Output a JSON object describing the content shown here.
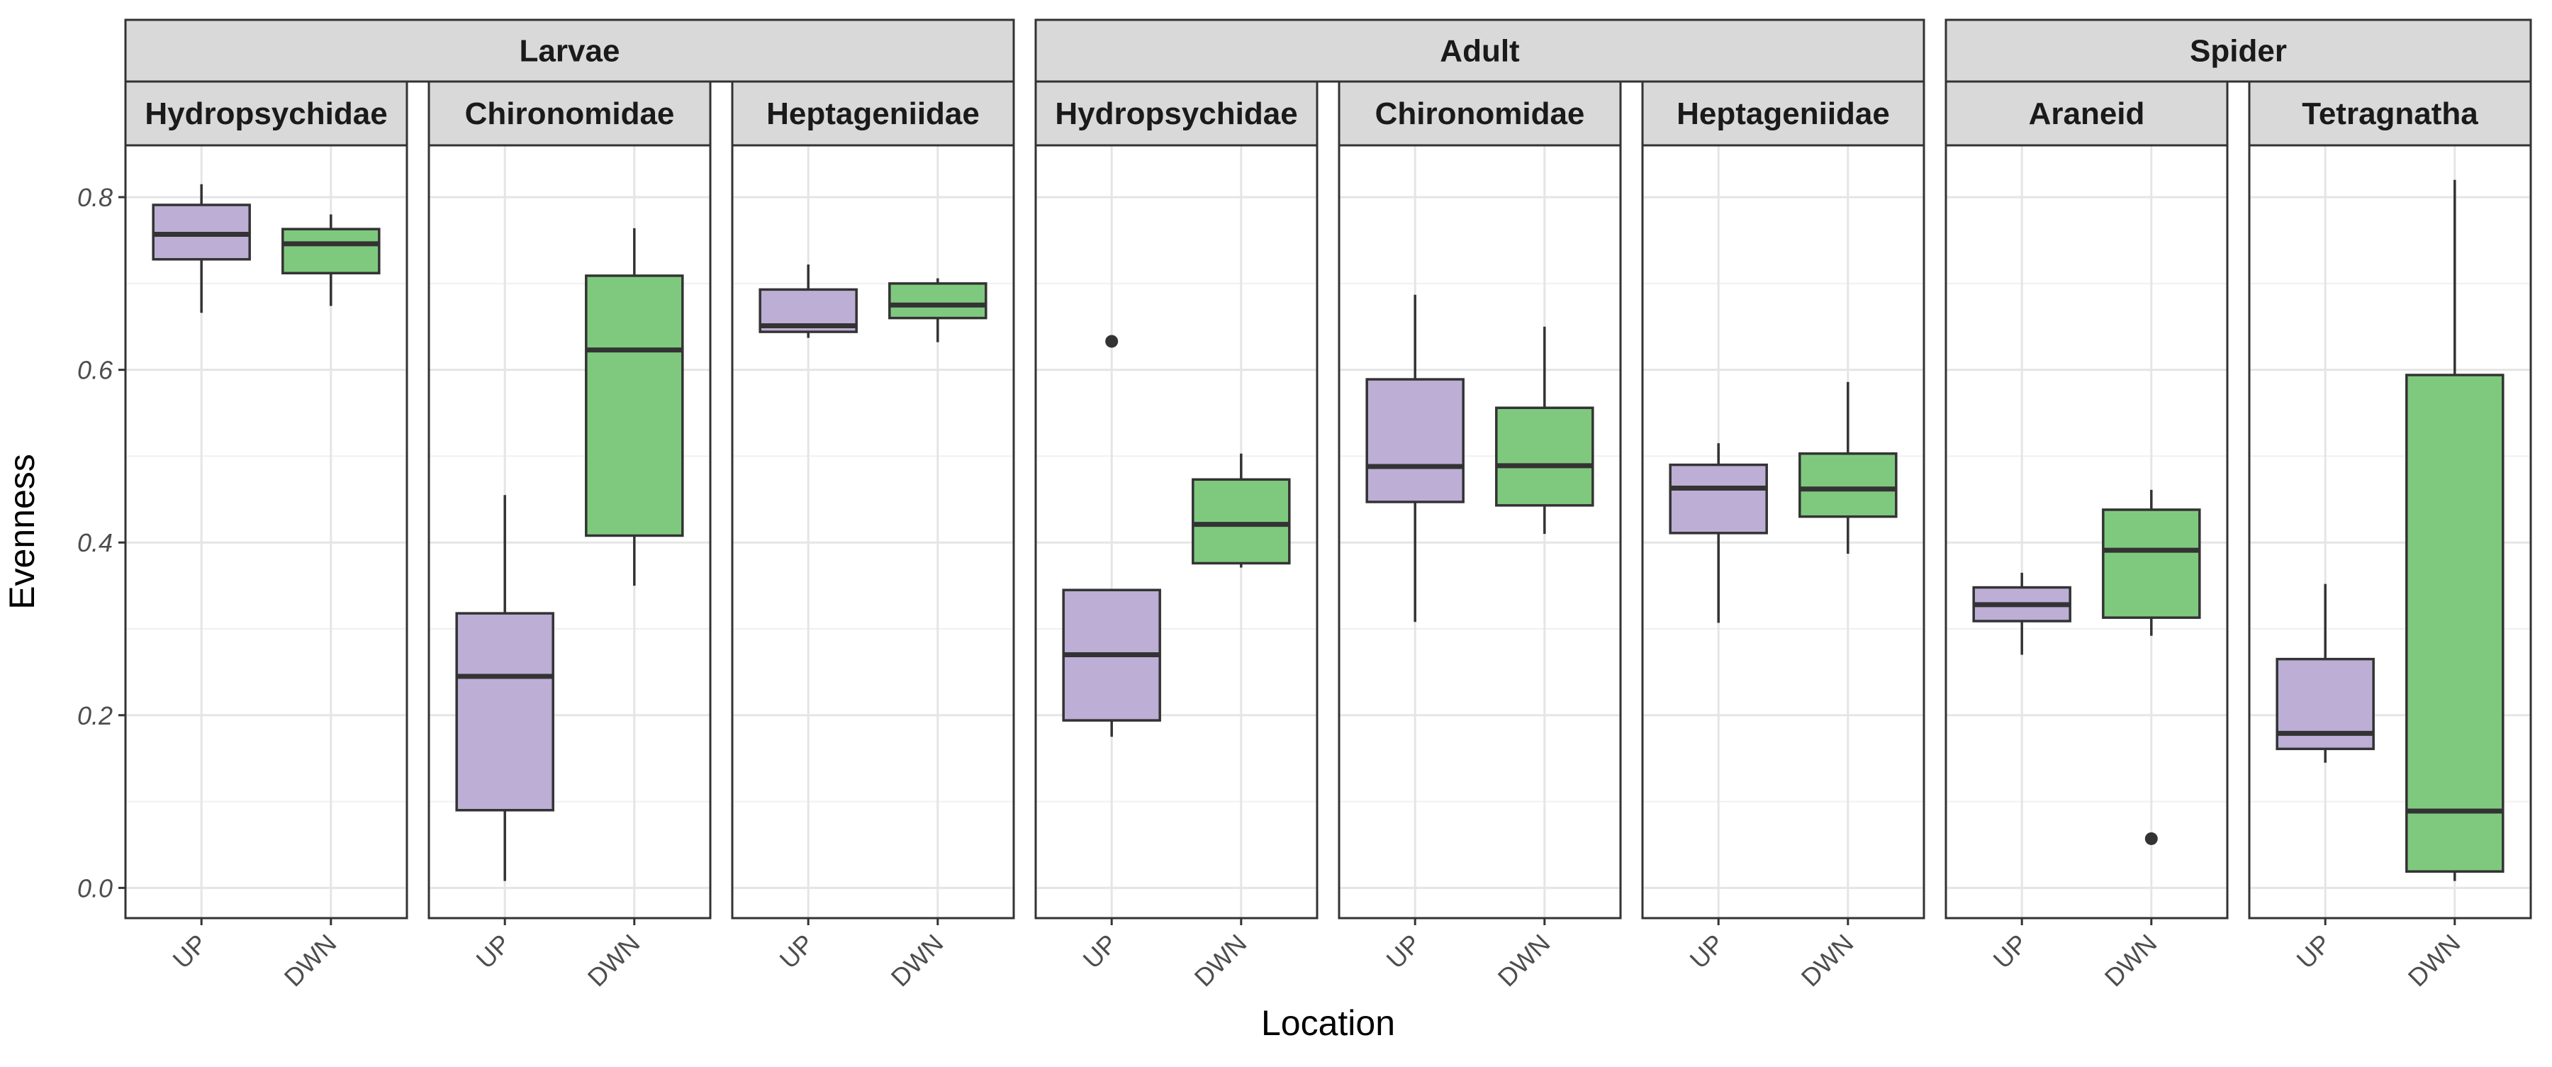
{
  "chart_data": {
    "type": "box",
    "ylabel": "Evenness",
    "xlabel": "Location",
    "ylim": [
      -0.035,
      0.86
    ],
    "y_ticks": [
      "0.0",
      "0.2",
      "0.4",
      "0.6",
      "0.8"
    ],
    "categories": [
      "UP",
      "DWN"
    ],
    "colors": {
      "UP": "#bcaed5",
      "DWN": "#7fc97f"
    },
    "grid": true,
    "legend": "none",
    "groups": [
      {
        "label": "Larvae",
        "panels": [
          {
            "label": "Hydropsychidae",
            "boxes": [
              {
                "location": "UP",
                "min": 0.666,
                "q1": 0.728,
                "median": 0.757,
                "q3": 0.791,
                "max": 0.815,
                "outliers": []
              },
              {
                "location": "DWN",
                "min": 0.674,
                "q1": 0.712,
                "median": 0.746,
                "q3": 0.763,
                "max": 0.78,
                "outliers": []
              }
            ]
          },
          {
            "label": "Chironomidae",
            "boxes": [
              {
                "location": "UP",
                "min": 0.008,
                "q1": 0.09,
                "median": 0.245,
                "q3": 0.318,
                "max": 0.455,
                "outliers": []
              },
              {
                "location": "DWN",
                "min": 0.35,
                "q1": 0.408,
                "median": 0.623,
                "q3": 0.709,
                "max": 0.764,
                "outliers": []
              }
            ]
          },
          {
            "label": "Heptageniidae",
            "boxes": [
              {
                "location": "UP",
                "min": 0.637,
                "q1": 0.644,
                "median": 0.651,
                "q3": 0.693,
                "max": 0.722,
                "outliers": []
              },
              {
                "location": "DWN",
                "min": 0.632,
                "q1": 0.66,
                "median": 0.675,
                "q3": 0.7,
                "max": 0.706,
                "outliers": []
              }
            ]
          }
        ]
      },
      {
        "label": "Adult",
        "panels": [
          {
            "label": "Hydropsychidae",
            "boxes": [
              {
                "location": "UP",
                "min": 0.175,
                "q1": 0.194,
                "median": 0.27,
                "q3": 0.345,
                "max": 0.345,
                "outliers": [
                  0.633
                ]
              },
              {
                "location": "DWN",
                "min": 0.371,
                "q1": 0.376,
                "median": 0.421,
                "q3": 0.473,
                "max": 0.503,
                "outliers": []
              }
            ]
          },
          {
            "label": "Chironomidae",
            "boxes": [
              {
                "location": "UP",
                "min": 0.308,
                "q1": 0.447,
                "median": 0.488,
                "q3": 0.589,
                "max": 0.687,
                "outliers": []
              },
              {
                "location": "DWN",
                "min": 0.41,
                "q1": 0.443,
                "median": 0.489,
                "q3": 0.556,
                "max": 0.65,
                "outliers": []
              }
            ]
          },
          {
            "label": "Heptageniidae",
            "boxes": [
              {
                "location": "UP",
                "min": 0.307,
                "q1": 0.411,
                "median": 0.463,
                "q3": 0.49,
                "max": 0.515,
                "outliers": []
              },
              {
                "location": "DWN",
                "min": 0.387,
                "q1": 0.43,
                "median": 0.462,
                "q3": 0.503,
                "max": 0.586,
                "outliers": []
              }
            ]
          }
        ]
      },
      {
        "label": "Spider",
        "panels": [
          {
            "label": "Araneid",
            "boxes": [
              {
                "location": "UP",
                "min": 0.27,
                "q1": 0.309,
                "median": 0.328,
                "q3": 0.348,
                "max": 0.365,
                "outliers": []
              },
              {
                "location": "DWN",
                "min": 0.292,
                "q1": 0.313,
                "median": 0.391,
                "q3": 0.438,
                "max": 0.461,
                "outliers": [
                  0.057
                ]
              }
            ]
          },
          {
            "label": "Tetragnatha",
            "boxes": [
              {
                "location": "UP",
                "min": 0.145,
                "q1": 0.161,
                "median": 0.179,
                "q3": 0.265,
                "max": 0.352,
                "outliers": []
              },
              {
                "location": "DWN",
                "min": 0.008,
                "q1": 0.019,
                "median": 0.089,
                "q3": 0.594,
                "max": 0.82,
                "outliers": []
              }
            ]
          }
        ]
      }
    ]
  }
}
